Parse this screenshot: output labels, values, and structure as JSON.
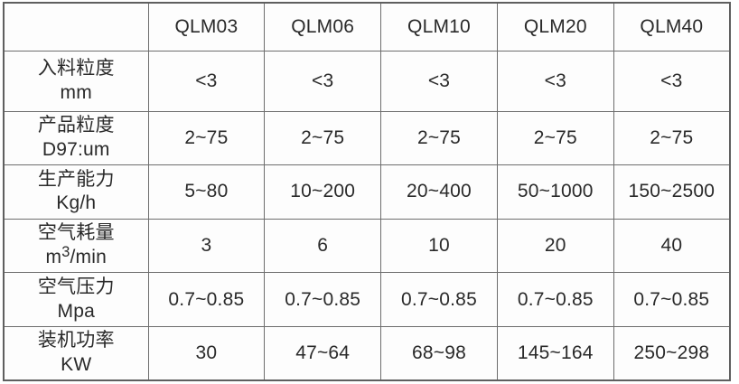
{
  "colors": {
    "background": "#ffffff",
    "table_background": "#fdfdfd",
    "border": "#6d6d6d",
    "outer_border": "#5f5f5f",
    "text": "#2a2a2a"
  },
  "table": {
    "columns": [
      "",
      "QLM03",
      "QLM06",
      "QLM10",
      "QLM20",
      "QLM40"
    ],
    "rows": [
      {
        "label_lines": [
          "入料粒度",
          "mm"
        ],
        "values": [
          "<3",
          "<3",
          "<3",
          "<3",
          "<3"
        ]
      },
      {
        "label_lines": [
          "产品粒度",
          "D97:um"
        ],
        "values": [
          "2~75",
          "2~75",
          "2~75",
          "2~75",
          "2~75"
        ]
      },
      {
        "label_lines": [
          "生产能力",
          "Kg/h"
        ],
        "values": [
          "5~80",
          "10~200",
          "20~400",
          "50~1000",
          "150~2500"
        ]
      },
      {
        "label_lines": [
          "空气耗量",
          {
            "pre": "m",
            "sup": "3",
            "post": "/min"
          }
        ],
        "values": [
          "3",
          "6",
          "10",
          "20",
          "40"
        ]
      },
      {
        "label_lines": [
          "空气压力",
          "Mpa"
        ],
        "values": [
          "0.7~0.85",
          "0.7~0.85",
          "0.7~0.85",
          "0.7~0.85",
          "0.7~0.85"
        ]
      },
      {
        "label_lines": [
          "装机功率",
          "KW"
        ],
        "values": [
          "30",
          "47~64",
          "68~98",
          "145~164",
          "250~298"
        ]
      }
    ]
  }
}
